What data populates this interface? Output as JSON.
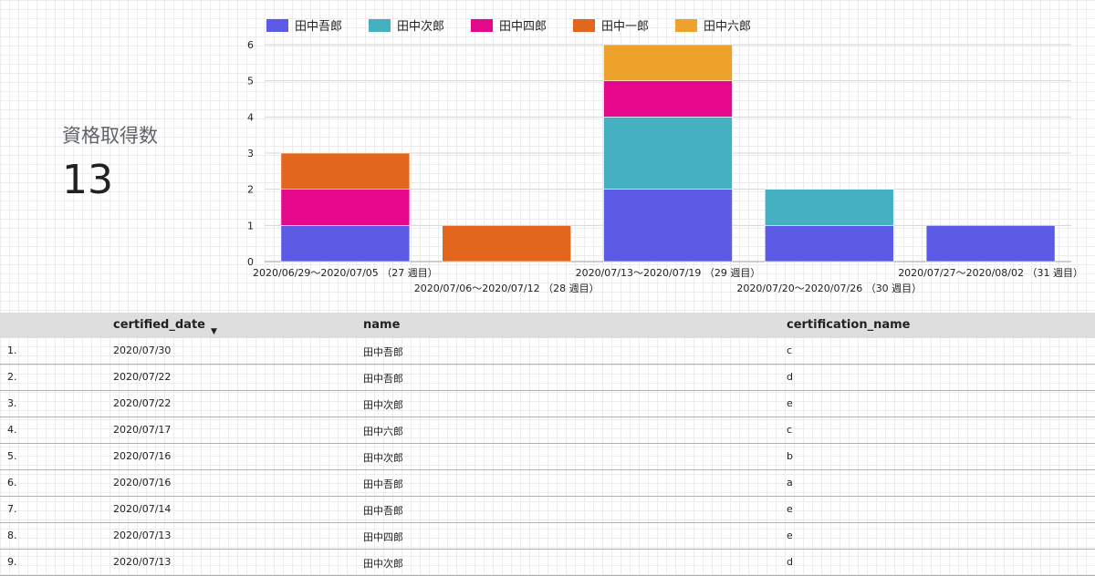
{
  "scorecard": {
    "label": "資格取得数",
    "value": "13"
  },
  "chart_data": {
    "type": "bar",
    "stacked": true,
    "categories": [
      "2020/06/29〜2020/07/05 （27 週目）",
      "2020/07/06〜2020/07/12 （28 週目）",
      "2020/07/13〜2020/07/19 （29 週目）",
      "2020/07/20〜2020/07/26 （30 週目）",
      "2020/07/27〜2020/08/02 （31 週目）"
    ],
    "series": [
      {
        "name": "田中吾郎",
        "color": "#5b5be5",
        "values": [
          1,
          0,
          2,
          1,
          1
        ]
      },
      {
        "name": "田中次郎",
        "color": "#46b0c3",
        "values": [
          0,
          0,
          2,
          1,
          0
        ]
      },
      {
        "name": "田中四郎",
        "color": "#e5088b",
        "values": [
          1,
          0,
          1,
          0,
          0
        ]
      },
      {
        "name": "田中一郎",
        "color": "#e3661f",
        "values": [
          1,
          1,
          0,
          0,
          0
        ]
      },
      {
        "name": "田中六郎",
        "color": "#eea12b",
        "values": [
          0,
          0,
          1,
          0,
          0
        ]
      }
    ],
    "ylim": [
      0,
      6
    ],
    "yticks": [
      "0",
      "1",
      "2",
      "3",
      "4",
      "5",
      "6"
    ],
    "grid": true,
    "legend": "top"
  },
  "table": {
    "headers": [
      "certified_date",
      "name",
      "certification_name"
    ],
    "sort_icon": "sort-desc-icon",
    "rows": [
      {
        "idx": "1.",
        "date": "2020/07/30",
        "name": "田中吾郎",
        "cert": "c"
      },
      {
        "idx": "2.",
        "date": "2020/07/22",
        "name": "田中吾郎",
        "cert": "d"
      },
      {
        "idx": "3.",
        "date": "2020/07/22",
        "name": "田中次郎",
        "cert": "e"
      },
      {
        "idx": "4.",
        "date": "2020/07/17",
        "name": "田中六郎",
        "cert": "c"
      },
      {
        "idx": "5.",
        "date": "2020/07/16",
        "name": "田中次郎",
        "cert": "b"
      },
      {
        "idx": "6.",
        "date": "2020/07/16",
        "name": "田中吾郎",
        "cert": "a"
      },
      {
        "idx": "7.",
        "date": "2020/07/14",
        "name": "田中吾郎",
        "cert": "e"
      },
      {
        "idx": "8.",
        "date": "2020/07/13",
        "name": "田中四郎",
        "cert": "e"
      },
      {
        "idx": "9.",
        "date": "2020/07/13",
        "name": "田中次郎",
        "cert": "d"
      }
    ]
  }
}
